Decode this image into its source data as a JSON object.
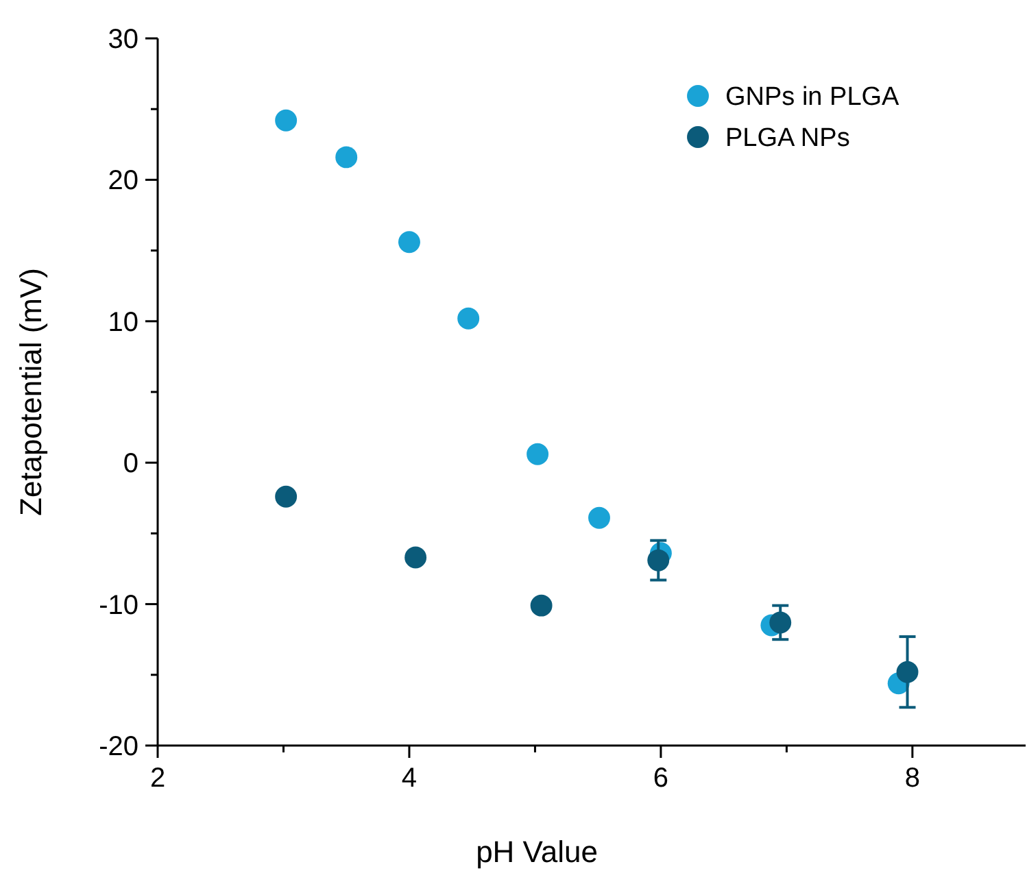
{
  "chart_data": {
    "type": "scatter",
    "xlabel": "pH Value",
    "ylabel": "Zetapotential (mV)",
    "xlim": [
      2,
      8.9
    ],
    "xticks": [
      2,
      {
        "value": 3,
        "label": null
      },
      4,
      {
        "value": 5,
        "label": null
      },
      6,
      {
        "value": 7,
        "label": null
      },
      8
    ],
    "ylim": [
      -20,
      30
    ],
    "yticks": [
      -20,
      {
        "value": -15,
        "label": null
      },
      -10,
      {
        "value": -5,
        "label": null
      },
      0,
      {
        "value": 5,
        "label": null
      },
      10,
      {
        "value": 15,
        "label": null
      },
      20,
      {
        "value": 25,
        "label": null
      },
      30
    ],
    "legend": "top right",
    "marker": "circle",
    "grid": false,
    "series": [
      {
        "name": "GNPs in PLGA",
        "color": "#1aa3d6",
        "x": [
          3.02,
          3.5,
          4.0,
          4.47,
          5.02,
          5.51,
          6.0,
          6.88,
          7.89
        ],
        "values": [
          24.2,
          21.6,
          15.6,
          10.2,
          0.6,
          -3.9,
          -6.4,
          -11.5,
          -15.6
        ],
        "errors": [
          null,
          null,
          null,
          null,
          null,
          null,
          null,
          null,
          null
        ]
      },
      {
        "name": "PLGA NPs",
        "color": "#0b5b7a",
        "x": [
          3.02,
          4.05,
          5.05,
          5.98,
          6.95,
          7.96
        ],
        "values": [
          -2.4,
          -6.7,
          -10.1,
          -6.9,
          -11.3,
          -14.8
        ],
        "errors": [
          null,
          null,
          null,
          1.4,
          1.2,
          2.5
        ]
      }
    ]
  }
}
